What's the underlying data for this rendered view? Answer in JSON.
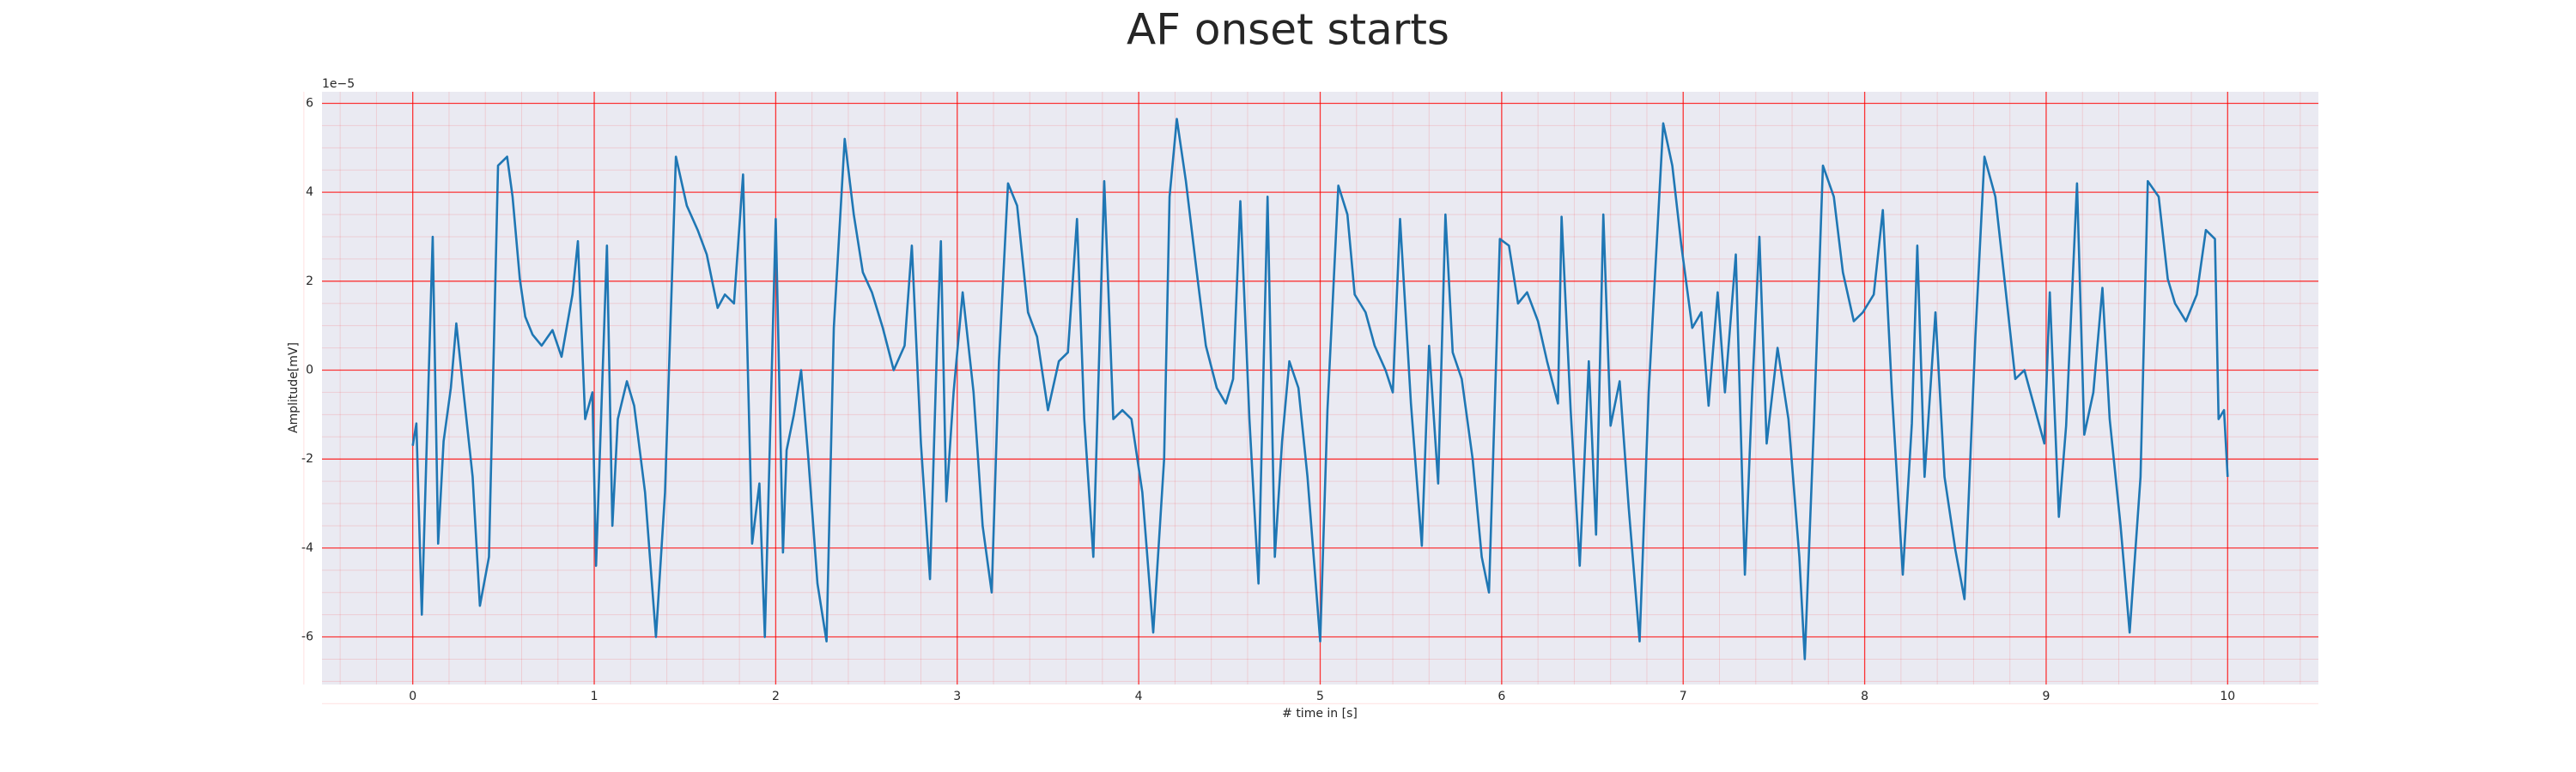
{
  "chart_data": {
    "type": "line",
    "title": "AF onset starts",
    "x_label": "# time in [s]",
    "y_label": "Amplitude[mV]",
    "y_offset_text": "1e−5",
    "color": "#1f77b4",
    "background": "#eaeaf2",
    "grid": true,
    "grid_color": "#ff0000",
    "minor_grid": true,
    "xlim": [
      -0.5,
      10.5
    ],
    "ylim": [
      -7.07,
      6.26
    ],
    "xticks": [
      0,
      1,
      2,
      3,
      4,
      5,
      6,
      7,
      8,
      9,
      10
    ],
    "yticks": [
      -6,
      -4,
      -2,
      0,
      2,
      4,
      6
    ],
    "x": [
      0,
      0.02,
      0.05,
      0.11,
      0.14,
      0.17,
      0.21,
      0.24,
      0.28,
      0.33,
      0.37,
      0.42,
      0.47,
      0.52,
      0.55,
      0.59,
      0.62,
      0.66,
      0.71,
      0.77,
      0.82,
      0.88,
      0.91,
      0.95,
      0.99,
      1.01,
      1.07,
      1.1,
      1.13,
      1.18,
      1.22,
      1.28,
      1.34,
      1.39,
      1.45,
      1.51,
      1.57,
      1.62,
      1.68,
      1.72,
      1.77,
      1.82,
      1.87,
      1.91,
      1.94,
      2.0,
      2.04,
      2.06,
      2.1,
      2.14,
      2.18,
      2.23,
      2.28,
      2.32,
      2.38,
      2.43,
      2.48,
      2.53,
      2.59,
      2.65,
      2.71,
      2.75,
      2.8,
      2.85,
      2.89,
      2.91,
      2.94,
      2.98,
      3.03,
      3.09,
      3.14,
      3.19,
      3.23,
      3.28,
      3.33,
      3.39,
      3.44,
      3.5,
      3.56,
      3.61,
      3.66,
      3.7,
      3.75,
      3.81,
      3.86,
      3.91,
      3.96,
      4.02,
      4.08,
      4.14,
      4.17,
      4.21,
      4.26,
      4.32,
      4.37,
      4.43,
      4.48,
      4.52,
      4.56,
      4.61,
      4.66,
      4.71,
      4.75,
      4.79,
      4.83,
      4.88,
      4.93,
      5.0,
      5.04,
      5.1,
      5.15,
      5.19,
      5.25,
      5.3,
      5.36,
      5.4,
      5.44,
      5.5,
      5.56,
      5.6,
      5.65,
      5.69,
      5.73,
      5.78,
      5.84,
      5.89,
      5.93,
      5.99,
      6.04,
      6.09,
      6.14,
      6.2,
      6.25,
      6.31,
      6.33,
      6.38,
      6.43,
      6.48,
      6.52,
      6.56,
      6.6,
      6.65,
      6.7,
      6.76,
      6.81,
      6.89,
      6.94,
      6.99,
      7.05,
      7.1,
      7.14,
      7.19,
      7.23,
      7.29,
      7.34,
      7.38,
      7.42,
      7.46,
      7.52,
      7.58,
      7.64,
      7.67,
      7.72,
      7.77,
      7.83,
      7.88,
      7.94,
      7.99,
      8.05,
      8.1,
      8.15,
      8.21,
      8.26,
      8.29,
      8.33,
      8.39,
      8.44,
      8.5,
      8.55,
      8.61,
      8.66,
      8.72,
      8.77,
      8.83,
      8.88,
      8.93,
      8.99,
      9.02,
      9.07,
      9.11,
      9.17,
      9.21,
      9.26,
      9.31,
      9.35,
      9.41,
      9.46,
      9.52,
      9.56,
      9.62,
      9.67,
      9.71,
      9.77,
      9.83,
      9.88,
      9.93,
      9.95,
      9.98,
      10.0
    ],
    "values": [
      -1.7,
      -1.2,
      -5.5,
      3.0,
      -3.9,
      -1.6,
      -0.4,
      1.05,
      -0.5,
      -2.4,
      -5.3,
      -4.2,
      4.6,
      4.8,
      3.9,
      2.05,
      1.2,
      0.8,
      0.55,
      0.9,
      0.3,
      1.7,
      2.9,
      -1.1,
      -0.5,
      -4.4,
      2.8,
      -3.5,
      -1.1,
      -0.25,
      -0.8,
      -2.75,
      -6.0,
      -2.75,
      4.8,
      3.7,
      3.15,
      2.6,
      1.4,
      1.7,
      1.5,
      4.4,
      -3.9,
      -2.55,
      -6.0,
      3.4,
      -4.1,
      -1.8,
      -1.0,
      0.0,
      -2.0,
      -4.8,
      -6.1,
      0.95,
      5.2,
      3.5,
      2.2,
      1.75,
      0.95,
      0.0,
      0.55,
      2.8,
      -1.65,
      -4.7,
      0.75,
      2.9,
      -2.95,
      -0.5,
      1.75,
      -0.5,
      -3.5,
      -5.0,
      0.2,
      4.2,
      3.7,
      1.3,
      0.75,
      -0.9,
      0.2,
      0.4,
      3.4,
      -1.1,
      -4.2,
      4.25,
      -1.1,
      -0.9,
      -1.1,
      -2.75,
      -5.9,
      -2.0,
      3.9,
      5.65,
      4.25,
      2.2,
      0.55,
      -0.4,
      -0.75,
      -0.2,
      3.8,
      -1.1,
      -4.8,
      3.9,
      -4.2,
      -1.6,
      0.2,
      -0.4,
      -2.4,
      -6.1,
      -0.9,
      4.15,
      3.5,
      1.7,
      1.3,
      0.55,
      0.0,
      -0.5,
      3.4,
      -0.75,
      -3.95,
      0.55,
      -2.55,
      3.5,
      0.4,
      -0.2,
      -2.0,
      -4.2,
      -5.0,
      2.95,
      2.8,
      1.5,
      1.75,
      1.1,
      0.2,
      -0.75,
      3.45,
      -0.9,
      -4.4,
      0.2,
      -3.7,
      3.5,
      -1.25,
      -0.25,
      -3.1,
      -6.1,
      -0.5,
      5.55,
      4.6,
      2.8,
      0.95,
      1.3,
      -0.8,
      1.75,
      -0.5,
      2.6,
      -4.6,
      -0.5,
      3.0,
      -1.65,
      0.5,
      -1.1,
      -4.2,
      -6.5,
      -1.25,
      4.6,
      3.9,
      2.2,
      1.1,
      1.3,
      1.7,
      3.6,
      -0.5,
      -4.6,
      -1.2,
      2.8,
      -2.4,
      1.3,
      -2.4,
      -4.05,
      -5.15,
      0.75,
      4.8,
      3.9,
      2.05,
      -0.2,
      0.0,
      -0.75,
      -1.65,
      1.75,
      -3.3,
      -1.25,
      4.2,
      -1.45,
      -0.5,
      1.85,
      -1.1,
      -3.5,
      -5.9,
      -2.4,
      4.25,
      3.9,
      2.05,
      1.5,
      1.1,
      1.7,
      3.15,
      2.95,
      -1.1,
      -0.9,
      -2.4
    ]
  }
}
